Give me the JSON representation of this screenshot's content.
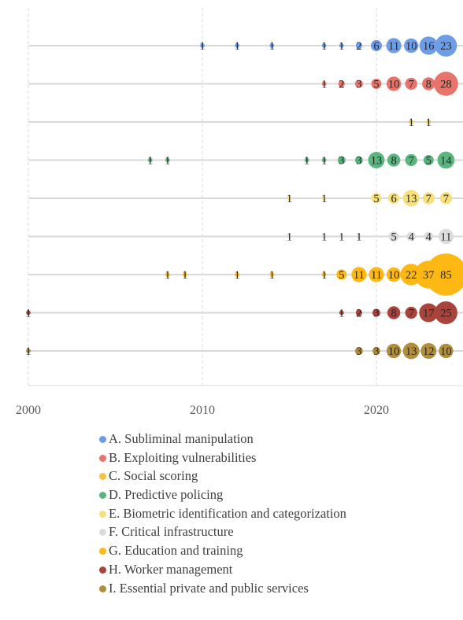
{
  "chart_data": {
    "type": "scatter",
    "title": "",
    "xlabel": "",
    "ylabel": "",
    "xlim": [
      2000,
      2025
    ],
    "xticks": [
      "2000",
      "2010",
      "2020"
    ],
    "grid": "vertical dashed",
    "legend_position": "bottom",
    "series": [
      {
        "name": "A. Subliminal manipulation",
        "color": "#6e9de8",
        "points": [
          [
            2010,
            1
          ],
          [
            2012,
            1
          ],
          [
            2014,
            1
          ],
          [
            2017,
            1
          ],
          [
            2018,
            1
          ],
          [
            2019,
            2
          ],
          [
            2020,
            6
          ],
          [
            2021,
            11
          ],
          [
            2022,
            10
          ],
          [
            2023,
            16
          ],
          [
            2024,
            23
          ]
        ]
      },
      {
        "name": "B. Exploiting vulnerabilities",
        "color": "#e8736a",
        "points": [
          [
            2017,
            1
          ],
          [
            2018,
            2
          ],
          [
            2019,
            3
          ],
          [
            2020,
            5
          ],
          [
            2021,
            10
          ],
          [
            2022,
            7
          ],
          [
            2023,
            8
          ],
          [
            2024,
            28
          ]
        ]
      },
      {
        "name": "C. Social scoring",
        "color": "#f5c242",
        "points": [
          [
            2022,
            1
          ],
          [
            2023,
            1
          ]
        ]
      },
      {
        "name": "D. Predictive policing",
        "color": "#5bb57f",
        "points": [
          [
            2007,
            1
          ],
          [
            2008,
            1
          ],
          [
            2016,
            1
          ],
          [
            2017,
            1
          ],
          [
            2018,
            3
          ],
          [
            2019,
            3
          ],
          [
            2020,
            13
          ],
          [
            2021,
            8
          ],
          [
            2022,
            7
          ],
          [
            2023,
            5
          ],
          [
            2024,
            14
          ]
        ]
      },
      {
        "name": "E. Biometric identification and categorization",
        "color": "#f7e07b",
        "points": [
          [
            2015,
            1
          ],
          [
            2017,
            1
          ],
          [
            2020,
            5
          ],
          [
            2021,
            6
          ],
          [
            2022,
            13
          ],
          [
            2023,
            7
          ],
          [
            2024,
            7
          ]
        ]
      },
      {
        "name": "F. Critical infrastructure",
        "color": "#dcdcdc",
        "points": [
          [
            2015,
            1
          ],
          [
            2017,
            1
          ],
          [
            2018,
            1
          ],
          [
            2019,
            1
          ],
          [
            2021,
            5
          ],
          [
            2022,
            4
          ],
          [
            2023,
            4
          ],
          [
            2024,
            11
          ]
        ]
      },
      {
        "name": "G. Education and training",
        "color": "#fdb813",
        "points": [
          [
            2008,
            1
          ],
          [
            2009,
            1
          ],
          [
            2012,
            1
          ],
          [
            2014,
            1
          ],
          [
            2017,
            1
          ],
          [
            2018,
            5
          ],
          [
            2019,
            11
          ],
          [
            2020,
            11
          ],
          [
            2021,
            10
          ],
          [
            2022,
            22
          ],
          [
            2023,
            37
          ],
          [
            2024,
            85
          ]
        ]
      },
      {
        "name": "H. Worker management",
        "color": "#a9443c",
        "points": [
          [
            2000,
            1
          ],
          [
            2018,
            1
          ],
          [
            2019,
            2
          ],
          [
            2020,
            3
          ],
          [
            2021,
            8
          ],
          [
            2022,
            7
          ],
          [
            2023,
            17
          ],
          [
            2024,
            25
          ]
        ]
      },
      {
        "name": "I. Essential private and public services",
        "color": "#b08e3c",
        "points": [
          [
            2000,
            1
          ],
          [
            2019,
            3
          ],
          [
            2020,
            3
          ],
          [
            2021,
            10
          ],
          [
            2022,
            13
          ],
          [
            2023,
            12
          ],
          [
            2024,
            10
          ]
        ]
      }
    ]
  }
}
